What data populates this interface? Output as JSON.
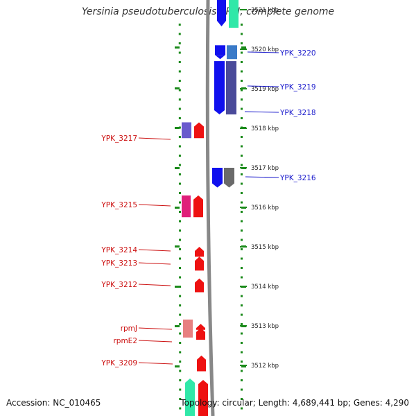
{
  "title": "Yersinia pseudotuberculosis YPIII, complete genome",
  "footer": {
    "accession": "Accession: NC_010465",
    "summary": "Topology: circular; Length: 4,689,441 bp; Genes: 4,290"
  },
  "scale": {
    "ticks": [
      {
        "label": "3521 kbp",
        "kbp": 3521
      },
      {
        "label": "3520 kbp",
        "kbp": 3520
      },
      {
        "label": "3519 kbp",
        "kbp": 3519
      },
      {
        "label": "3518 kbp",
        "kbp": 3518
      },
      {
        "label": "3517 kbp",
        "kbp": 3517
      },
      {
        "label": "3516 kbp",
        "kbp": 3516
      },
      {
        "label": "3515 kbp",
        "kbp": 3515
      },
      {
        "label": "3514 kbp",
        "kbp": 3514
      },
      {
        "label": "3513 kbp",
        "kbp": 3513
      },
      {
        "label": "3512 kbp",
        "kbp": 3512
      }
    ]
  },
  "genes": {
    "forward": [
      {
        "label": "YPK_3220",
        "start": 3520.1,
        "end": 3519.75
      },
      {
        "label": "YPK_3219",
        "start": 3519.7,
        "end": 3518.35
      },
      {
        "label": "YPK_3218",
        "start": 3519.7,
        "end": 3518.35
      },
      {
        "label": "YPK_3216",
        "start": 3517.0,
        "end": 3516.5
      }
    ],
    "reverse": [
      {
        "label": "YPK_3217",
        "start": 3517.75,
        "end": 3518.15
      },
      {
        "label": "YPK_3215",
        "start": 3515.75,
        "end": 3516.3
      },
      {
        "label": "YPK_3214",
        "start": 3514.75,
        "end": 3515.0
      },
      {
        "label": "YPK_3213",
        "start": 3514.4,
        "end": 3514.75
      },
      {
        "label": "YPK_3212",
        "start": 3513.85,
        "end": 3514.2
      },
      {
        "label": "rpmJ",
        "start": 3512.9,
        "end": 3513.05
      },
      {
        "label": "rpmE2",
        "start": 3512.65,
        "end": 3512.95
      },
      {
        "label": "YPK_3209",
        "start": 3511.85,
        "end": 3512.25
      }
    ]
  },
  "colors": {
    "forward_label": "#1a1acc",
    "reverse_label": "#cc1111",
    "forward_cds": "#1010ee",
    "reverse_cds": "#ee1111",
    "backbone": "#888888",
    "ring": "#1a8a1a"
  }
}
